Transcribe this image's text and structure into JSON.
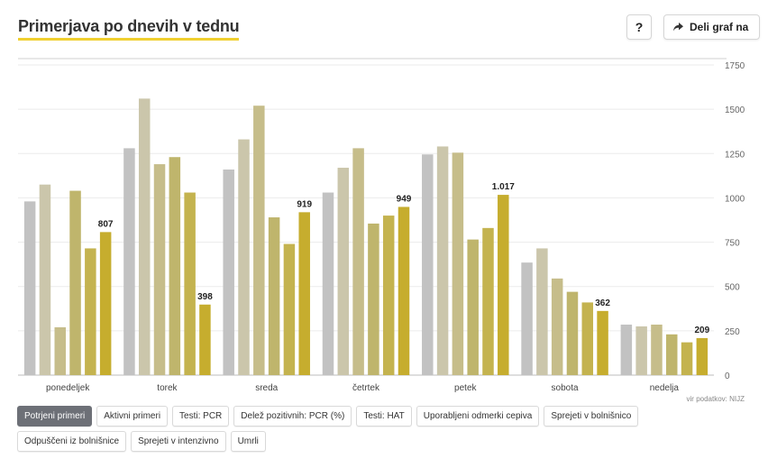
{
  "header": {
    "title": "Primerjava po dnevih v tednu",
    "help_label": "?",
    "share_label": "Deli graf na"
  },
  "source": "vir podatkov: NIJZ",
  "filters": [
    {
      "label": "Potrjeni primeri",
      "active": true
    },
    {
      "label": "Aktivni primeri",
      "active": false
    },
    {
      "label": "Testi: PCR",
      "active": false
    },
    {
      "label": "Delež pozitivnih: PCR (%)",
      "active": false
    },
    {
      "label": "Testi: HAT",
      "active": false
    },
    {
      "label": "Uporabljeni odmerki cepiva",
      "active": false
    },
    {
      "label": "Sprejeti v bolnišnico",
      "active": false
    },
    {
      "label": "Odpuščeni iz bolnišnice",
      "active": false
    },
    {
      "label": "Sprejeti v intenzivno",
      "active": false
    },
    {
      "label": "Umrli",
      "active": false
    }
  ],
  "chart_data": {
    "type": "bar",
    "categories": [
      "ponedeljek",
      "torek",
      "sreda",
      "četrtek",
      "petek",
      "sobota",
      "nedelja"
    ],
    "bar_colors": [
      "#c2c2c2",
      "#cbc6ab",
      "#c6bd8a",
      "#bfb56c",
      "#c4b34f",
      "#c6ad2e"
    ],
    "values": [
      [
        980,
        1075,
        270,
        1040,
        715,
        807
      ],
      [
        1280,
        1560,
        1190,
        1230,
        1030,
        398
      ],
      [
        1160,
        1330,
        1520,
        890,
        740,
        919
      ],
      [
        1030,
        1170,
        1280,
        855,
        900,
        949
      ],
      [
        1245,
        1290,
        1255,
        765,
        830,
        1017
      ],
      [
        635,
        715,
        545,
        470,
        410,
        362
      ],
      [
        285,
        275,
        285,
        230,
        185,
        209
      ]
    ],
    "labels": [
      "807",
      "398",
      "919",
      "949",
      "1.017",
      "362",
      "209"
    ],
    "y_ticks": [
      "0",
      "250",
      "500",
      "750",
      "1000",
      "1250",
      "1500",
      "1750"
    ],
    "ylim": [
      0,
      1750
    ]
  }
}
